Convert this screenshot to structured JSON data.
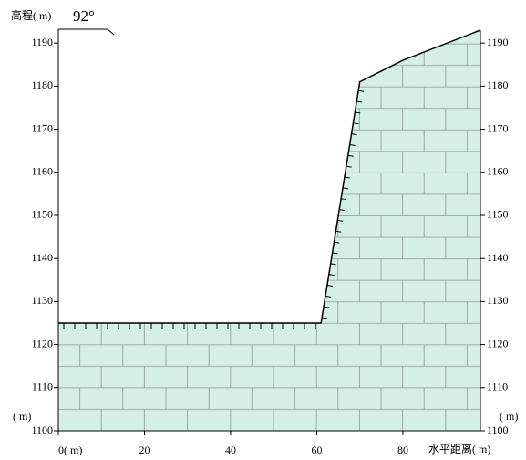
{
  "chart_data": {
    "type": "profile",
    "ylabel": "高程( m)",
    "xlabel": "水平距离( m)",
    "unit": "( m)",
    "annotation": "92°",
    "x": [
      0,
      61,
      70,
      80,
      98
    ],
    "values": [
      1125,
      1125,
      1181,
      1186,
      1193
    ],
    "color": "#d3efe6",
    "xlim": [
      0,
      98
    ],
    "ylim": [
      1100,
      1193
    ],
    "xticks": [
      0,
      20,
      40,
      60,
      80
    ],
    "yticks": [
      1100,
      1110,
      1120,
      1130,
      1140,
      1150,
      1160,
      1170,
      1180,
      1190
    ]
  }
}
